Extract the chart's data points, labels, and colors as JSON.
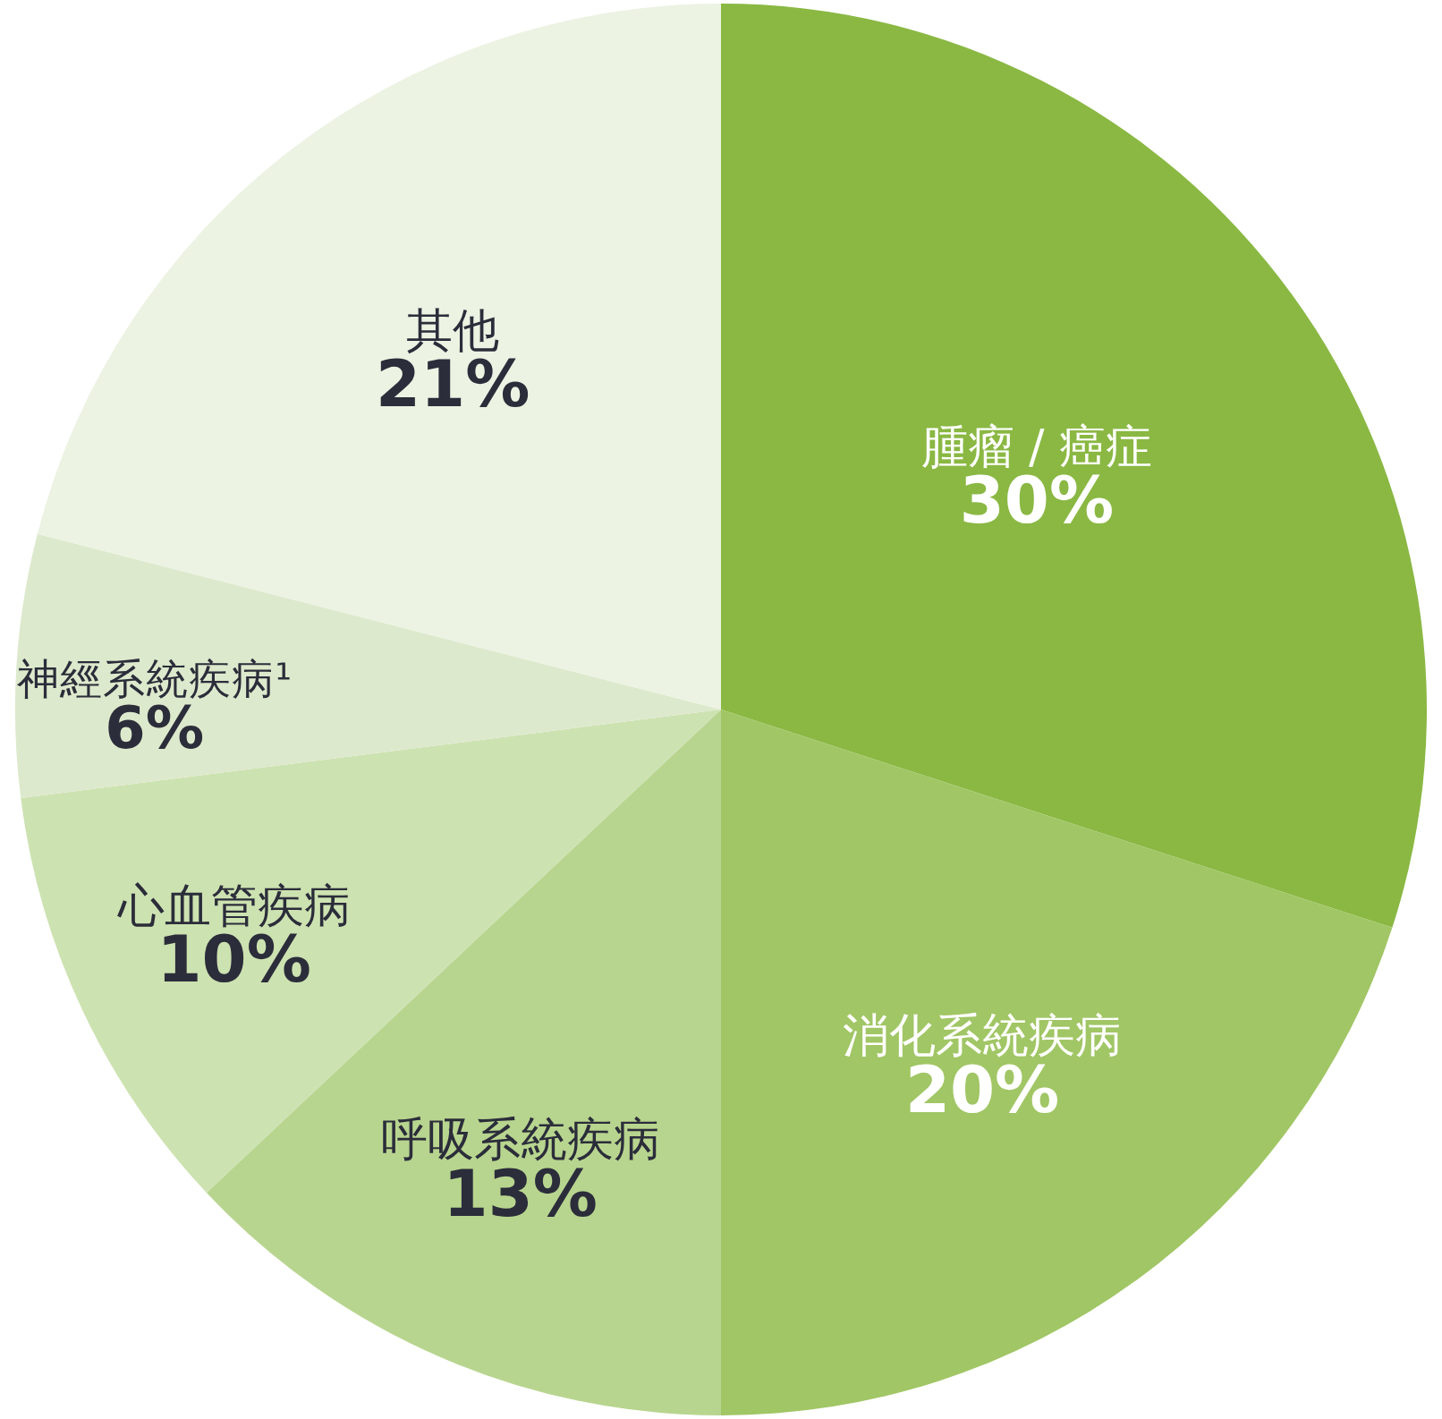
{
  "chart_data": {
    "type": "pie",
    "categories": [
      "腫瘤 / 癌症",
      "消化系統疾病",
      "呼吸系統疾病",
      "心血管疾病",
      "神經系統疾病¹",
      "其他"
    ],
    "values": [
      30,
      20,
      13,
      10,
      6,
      21
    ],
    "value_labels": [
      "30%",
      "20%",
      "13%",
      "10%",
      "6%",
      "21%"
    ],
    "colors": [
      "#8ab843",
      "#a1c665",
      "#b8d58f",
      "#cde2b1",
      "#dde9cc",
      "#ecf3e3"
    ],
    "legend": false
  }
}
